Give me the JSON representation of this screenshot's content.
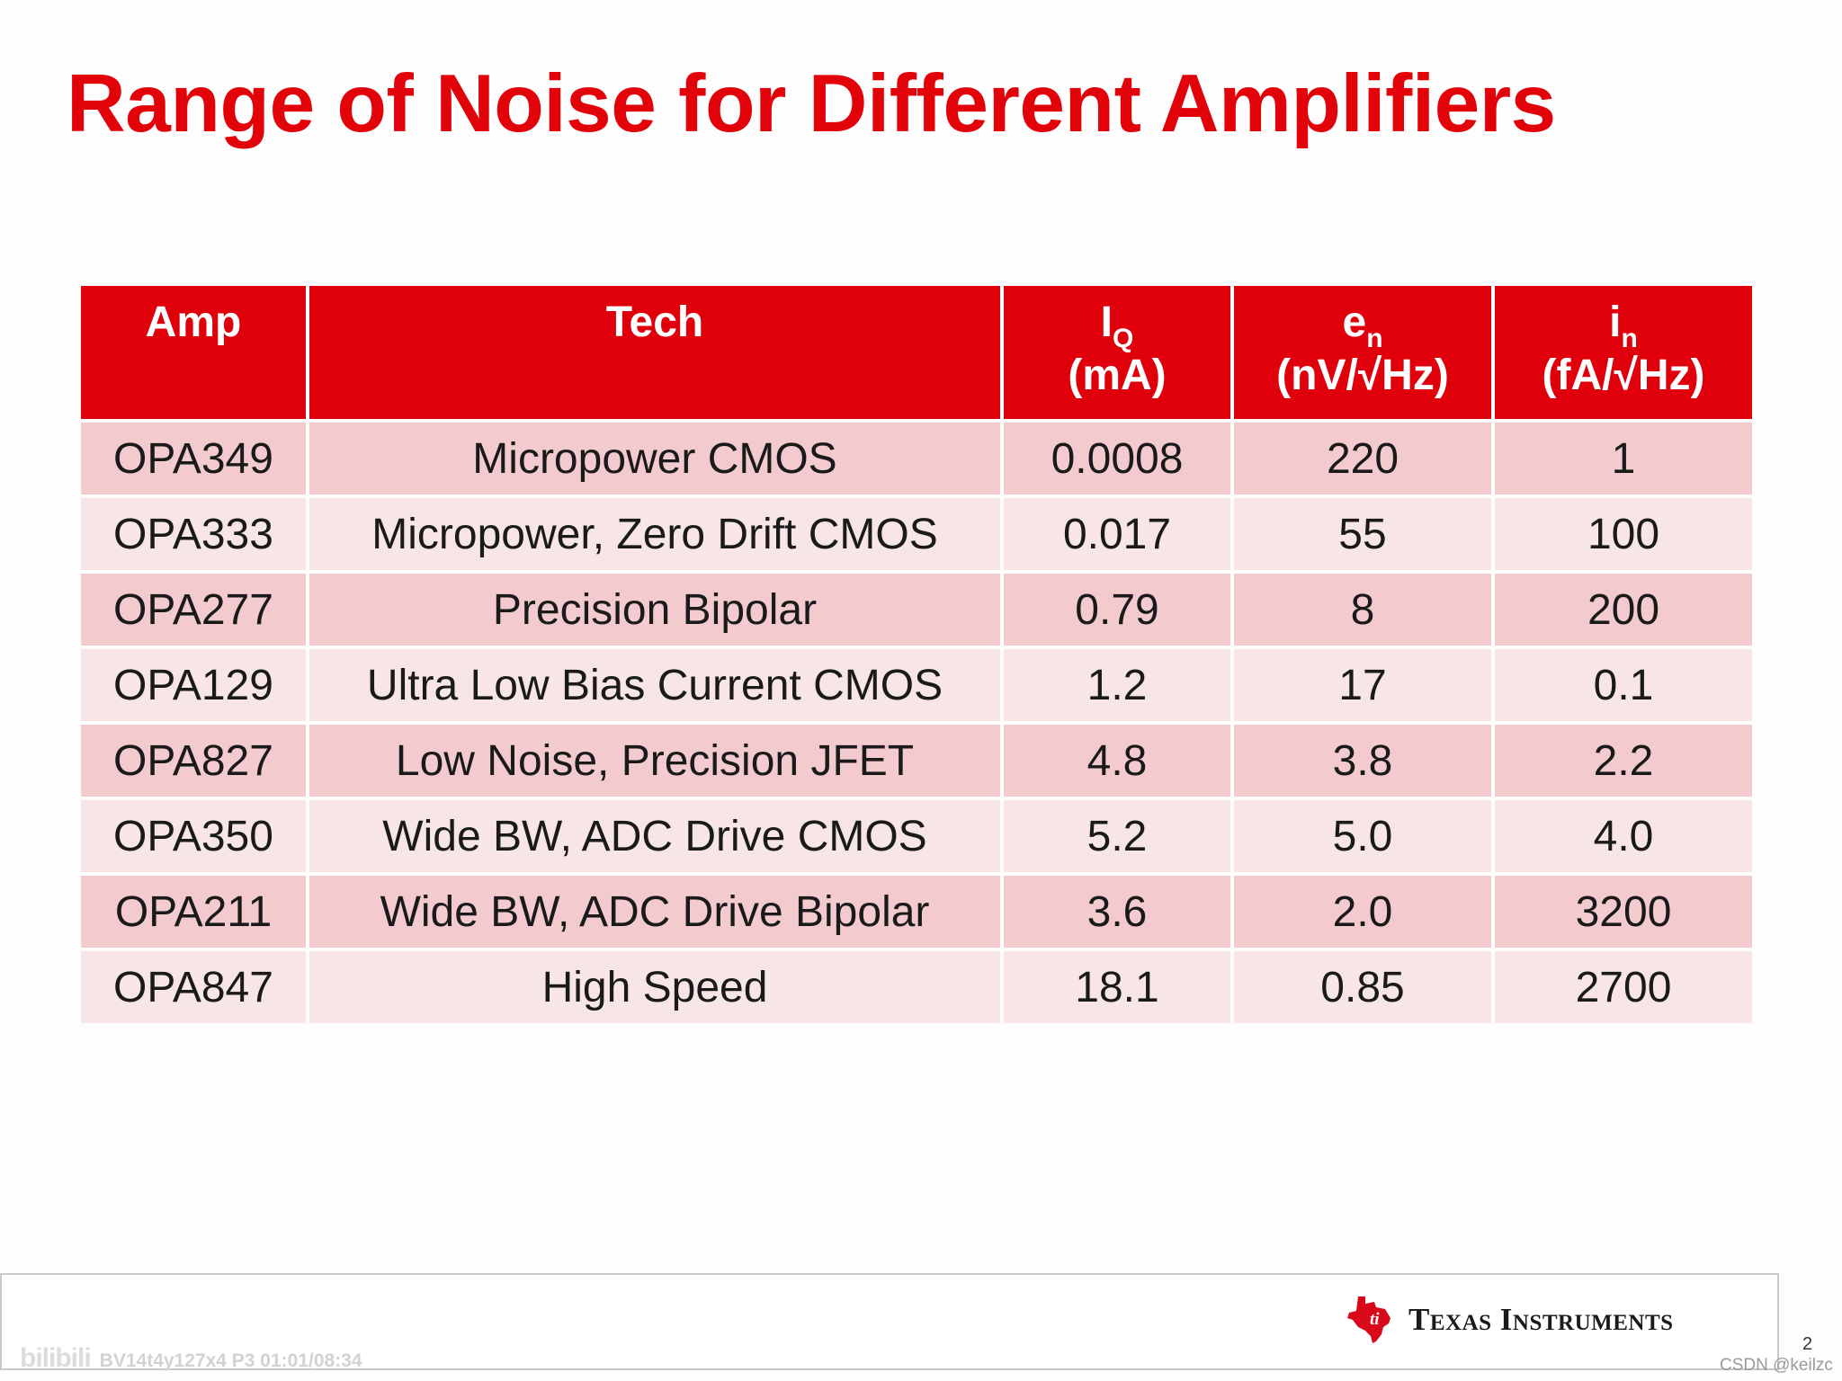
{
  "slide": {
    "title": "Range of Noise for Different Amplifiers"
  },
  "table": {
    "headers": {
      "amp": "Amp",
      "tech": "Tech",
      "iq": {
        "symbol": "I",
        "sub": "Q",
        "unit": "(mA)"
      },
      "en": {
        "symbol": "e",
        "sub": "n",
        "unit": "(nV/√Hz)"
      },
      "in": {
        "symbol": "i",
        "sub": "n",
        "unit": "(fA/√Hz)"
      }
    },
    "rows": [
      {
        "amp": "OPA349",
        "tech": "Micropower CMOS",
        "iq": "0.0008",
        "en": "220",
        "in": "1"
      },
      {
        "amp": "OPA333",
        "tech": "Micropower, Zero Drift CMOS",
        "iq": "0.017",
        "en": "55",
        "in": "100"
      },
      {
        "amp": "OPA277",
        "tech": "Precision Bipolar",
        "iq": "0.79",
        "en": "8",
        "in": "200"
      },
      {
        "amp": "OPA129",
        "tech": "Ultra Low Bias Current CMOS",
        "iq": "1.2",
        "en": "17",
        "in": "0.1"
      },
      {
        "amp": "OPA827",
        "tech": "Low Noise, Precision JFET",
        "iq": "4.8",
        "en": "3.8",
        "in": "2.2"
      },
      {
        "amp": "OPA350",
        "tech": "Wide BW, ADC Drive CMOS",
        "iq": "5.2",
        "en": "5.0",
        "in": "4.0"
      },
      {
        "amp": "OPA211",
        "tech": "Wide BW, ADC Drive Bipolar",
        "iq": "3.6",
        "en": "2.0",
        "in": "3200"
      },
      {
        "amp": "OPA847",
        "tech": "High Speed",
        "iq": "18.1",
        "en": "0.85",
        "in": "2700"
      }
    ]
  },
  "footer": {
    "watermark_logo": "bilibili",
    "watermark_text": "BV14t4y127x4 P3 01:01/08:34",
    "logo_text": "Texas Instruments",
    "page_number": "2",
    "credit": "CSDN @keilzc"
  },
  "colors": {
    "title": "#e2030a",
    "header_bg": "#e0000c",
    "row_odd": "#f3cbcf",
    "row_even": "#f8e6e7"
  }
}
